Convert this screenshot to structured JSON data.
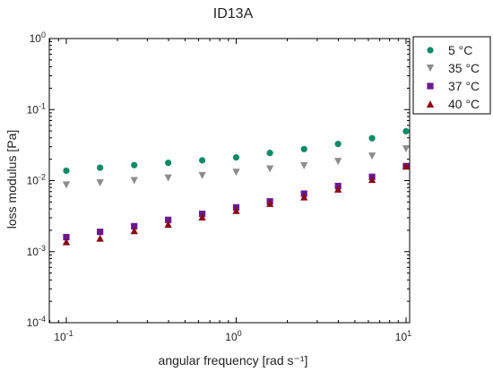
{
  "chart_data": {
    "type": "scatter",
    "title": "ID13A",
    "xlabel": "angular frequency [rad s⁻¹]",
    "ylabel": "loss modulus [Pa]",
    "xscale": "log",
    "yscale": "log",
    "xlim": [
      0.0794,
      10.5
    ],
    "ylim": [
      0.0001,
      1
    ],
    "x_ticks": [
      {
        "value": 0.1,
        "base": "10",
        "exp": "-1"
      },
      {
        "value": 1,
        "base": "10",
        "exp": "0"
      },
      {
        "value": 10,
        "base": "10",
        "exp": "1"
      }
    ],
    "y_ticks": [
      {
        "value": 0.0001,
        "base": "10",
        "exp": "-4"
      },
      {
        "value": 0.001,
        "base": "10",
        "exp": "-3"
      },
      {
        "value": 0.01,
        "base": "10",
        "exp": "-2"
      },
      {
        "value": 0.1,
        "base": "10",
        "exp": "-1"
      },
      {
        "value": 1,
        "base": "10",
        "exp": "0"
      }
    ],
    "grid": false,
    "legend_position": "top-right, outside plot",
    "x": [
      0.1,
      0.158,
      0.251,
      0.398,
      0.631,
      1.0,
      1.58,
      2.51,
      3.98,
      6.31,
      10.0
    ],
    "series": [
      {
        "name": "5 °C",
        "marker": "circle",
        "color": "#108a68",
        "values": [
          0.0138,
          0.0152,
          0.0165,
          0.0178,
          0.0193,
          0.0212,
          0.0245,
          0.0278,
          0.0328,
          0.0395,
          0.0495
        ]
      },
      {
        "name": "35 °C",
        "marker": "triangle-down",
        "color": "#8c8c8c",
        "values": [
          0.0087,
          0.0093,
          0.01,
          0.0109,
          0.0118,
          0.0131,
          0.0146,
          0.0162,
          0.0186,
          0.0222,
          0.028
        ]
      },
      {
        "name": "37 °C",
        "marker": "square",
        "color": "#6b1a8c",
        "values": [
          0.0016,
          0.0019,
          0.00228,
          0.0028,
          0.0034,
          0.0042,
          0.0051,
          0.00655,
          0.0084,
          0.0113,
          0.016
        ]
      },
      {
        "name": "40 °C",
        "marker": "triangle-up",
        "color": "#8c0a14",
        "values": [
          0.00138,
          0.00155,
          0.00198,
          0.00243,
          0.00308,
          0.0038,
          0.00478,
          0.0059,
          0.0076,
          0.0104,
          0.016
        ]
      }
    ]
  }
}
